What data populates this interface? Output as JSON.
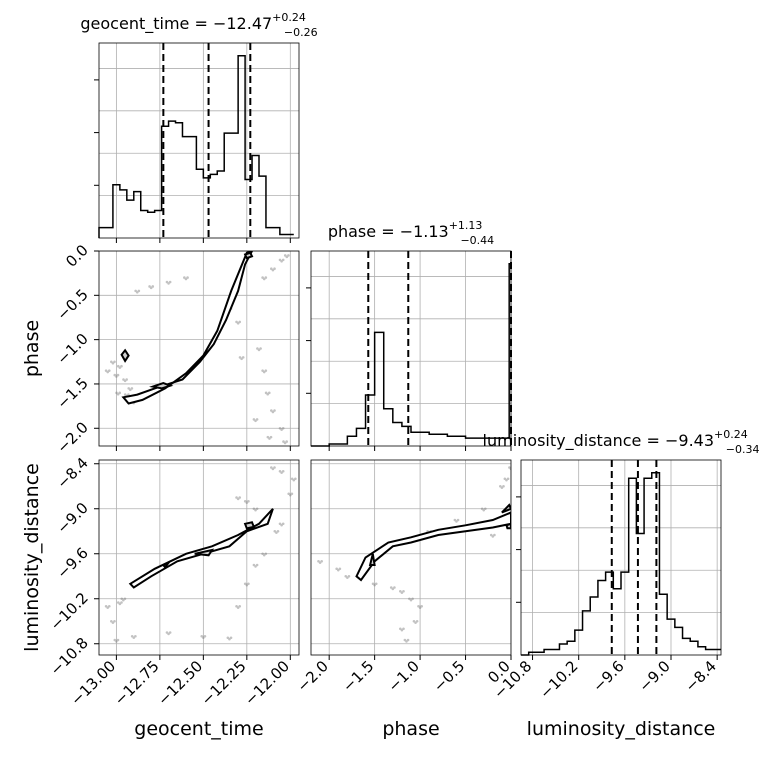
{
  "chart_data": {
    "type": "corner",
    "params": [
      {
        "id": "geocent_time",
        "label": "geocent_time",
        "range": [
          -13.1,
          -11.95
        ],
        "ticks": [
          -13.0,
          -12.75,
          -12.5,
          -12.25,
          -12.0
        ],
        "tick_labels": [
          "−13.00",
          "−12.75",
          "−12.50",
          "−12.25",
          "−12.00"
        ],
        "title": {
          "text": "geocent_time = −12.47",
          "sup": "+0.24",
          "sub": "−0.26"
        },
        "quantiles": [
          -12.73,
          -12.47,
          -12.23
        ],
        "hist": {
          "edges": [
            -13.1,
            -13.06,
            -13.02,
            -12.98,
            -12.94,
            -12.9,
            -12.86,
            -12.82,
            -12.78,
            -12.74,
            -12.7,
            -12.66,
            -12.62,
            -12.58,
            -12.54,
            -12.5,
            -12.46,
            -12.42,
            -12.38,
            -12.34,
            -12.3,
            -12.26,
            -12.22,
            -12.18,
            -12.14,
            -12.1,
            -12.06,
            -12.02,
            -11.98
          ],
          "counts": [
            0.06,
            0.06,
            0.31,
            0.28,
            0.22,
            0.27,
            0.16,
            0.15,
            0.16,
            0.65,
            0.68,
            0.67,
            0.59,
            0.59,
            0.4,
            0.35,
            0.37,
            0.39,
            0.61,
            0.61,
            1.06,
            0.34,
            0.48,
            0.36,
            0.06,
            0.06,
            0.02,
            0.02
          ]
        }
      },
      {
        "id": "phase",
        "label": "phase",
        "range": [
          -2.2,
          0.0
        ],
        "ticks": [
          -2.0,
          -1.5,
          -1.0,
          -0.5,
          0.0
        ],
        "tick_labels": [
          "−2.0",
          "−1.5",
          "−1.0",
          "−0.5",
          "0.0"
        ],
        "title": {
          "text": "phase = −1.13",
          "sup": "+1.13",
          "sub": "−0.44"
        },
        "quantiles": [
          -1.57,
          -1.13,
          0.0
        ],
        "hist": {
          "edges": [
            -2.2,
            -2.1,
            -2.0,
            -1.9,
            -1.8,
            -1.7,
            -1.6,
            -1.5,
            -1.4,
            -1.3,
            -1.2,
            -1.1,
            -1.0,
            -0.9,
            -0.8,
            -0.7,
            -0.6,
            -0.5,
            -0.4,
            -0.3,
            -0.2,
            -0.1,
            -0.02,
            0.0
          ],
          "counts": [
            0.0,
            0.0,
            0.01,
            0.01,
            0.05,
            0.09,
            0.26,
            0.58,
            0.19,
            0.12,
            0.1,
            0.07,
            0.07,
            0.06,
            0.06,
            0.05,
            0.05,
            0.04,
            0.04,
            0.04,
            0.04,
            0.04,
            0.93
          ]
        }
      },
      {
        "id": "luminosity_distance",
        "label": "luminosity_distance",
        "range": [
          -10.95,
          -8.35
        ],
        "ticks": [
          -10.8,
          -10.2,
          -9.6,
          -9.0,
          -8.4
        ],
        "tick_labels": [
          "−10.8",
          "−10.2",
          "−9.6",
          "−9.0",
          "−8.4"
        ],
        "title": {
          "text": "luminosity_distance = −9.43",
          "sup": "+0.24",
          "sub": "−0.34"
        },
        "quantiles": [
          -9.77,
          -9.43,
          -9.19
        ],
        "hist": {
          "edges": [
            -10.95,
            -10.85,
            -10.75,
            -10.65,
            -10.55,
            -10.45,
            -10.35,
            -10.25,
            -10.15,
            -10.05,
            -9.95,
            -9.85,
            -9.75,
            -9.65,
            -9.55,
            -9.45,
            -9.35,
            -9.25,
            -9.15,
            -9.05,
            -8.95,
            -8.85,
            -8.75,
            -8.65,
            -8.55,
            -8.45,
            -8.35
          ],
          "counts": [
            0.0,
            0.01,
            0.01,
            0.02,
            0.02,
            0.04,
            0.05,
            0.09,
            0.16,
            0.21,
            0.27,
            0.3,
            0.24,
            0.3,
            0.64,
            0.44,
            0.64,
            0.66,
            0.22,
            0.13,
            0.1,
            0.06,
            0.05,
            0.03,
            0.02,
            0.02
          ]
        }
      }
    ],
    "pairs": [
      {
        "xparam": "geocent_time",
        "yparam": "phase",
        "outer": [
          [
            -12.96,
            -1.65
          ],
          [
            -12.88,
            -1.62
          ],
          [
            -12.78,
            -1.55
          ],
          [
            -12.62,
            -1.45
          ],
          [
            -12.52,
            -1.25
          ],
          [
            -12.44,
            -1.05
          ],
          [
            -12.37,
            -0.78
          ],
          [
            -12.3,
            -0.45
          ],
          [
            -12.26,
            -0.15
          ],
          [
            -12.22,
            0.0
          ],
          [
            -12.25,
            -0.02
          ],
          [
            -12.34,
            -0.45
          ],
          [
            -12.42,
            -0.9
          ],
          [
            -12.5,
            -1.18
          ],
          [
            -12.6,
            -1.38
          ],
          [
            -12.72,
            -1.55
          ],
          [
            -12.85,
            -1.68
          ],
          [
            -12.93,
            -1.72
          ]
        ],
        "inner": [
          [
            -12.79,
            -1.53
          ],
          [
            -12.73,
            -1.49
          ],
          [
            -12.69,
            -1.52
          ],
          [
            -12.74,
            -1.55
          ]
        ],
        "inner2": [
          [
            -12.26,
            -0.04
          ],
          [
            -12.23,
            -0.02
          ],
          [
            -12.22,
            -0.06
          ],
          [
            -12.25,
            -0.08
          ]
        ],
        "inner3": [
          [
            -12.97,
            -1.17
          ],
          [
            -12.95,
            -1.12
          ],
          [
            -12.93,
            -1.18
          ],
          [
            -12.95,
            -1.24
          ]
        ],
        "scatter": [
          [
            -13.05,
            -1.35
          ],
          [
            -13.02,
            -1.25
          ],
          [
            -13.0,
            -1.4
          ],
          [
            -12.98,
            -1.3
          ],
          [
            -12.95,
            -1.45
          ],
          [
            -12.92,
            -1.55
          ],
          [
            -12.99,
            -1.6
          ],
          [
            -12.94,
            -1.62
          ],
          [
            -12.9,
            -1.7
          ],
          [
            -12.88,
            -0.45
          ],
          [
            -12.8,
            -0.4
          ],
          [
            -12.7,
            -0.35
          ],
          [
            -12.6,
            -0.3
          ],
          [
            -12.35,
            -0.65
          ],
          [
            -12.3,
            -0.8
          ],
          [
            -12.18,
            -1.1
          ],
          [
            -12.15,
            -1.35
          ],
          [
            -12.13,
            -1.6
          ],
          [
            -12.1,
            -1.8
          ],
          [
            -12.05,
            -2.0
          ],
          [
            -12.15,
            -0.3
          ],
          [
            -12.1,
            -0.2
          ],
          [
            -12.05,
            -0.1
          ],
          [
            -12.02,
            -0.05
          ],
          [
            -12.03,
            -2.15
          ],
          [
            -12.28,
            -1.2
          ],
          [
            -12.2,
            -1.9
          ],
          [
            -12.12,
            -2.1
          ]
        ]
      },
      {
        "xparam": "geocent_time",
        "yparam": "luminosity_distance",
        "outer": [
          [
            -12.92,
            -10.0
          ],
          [
            -12.78,
            -9.8
          ],
          [
            -12.6,
            -9.6
          ],
          [
            -12.45,
            -9.5
          ],
          [
            -12.3,
            -9.35
          ],
          [
            -12.18,
            -9.2
          ],
          [
            -12.1,
            -9.0
          ],
          [
            -12.13,
            -9.2
          ],
          [
            -12.25,
            -9.3
          ],
          [
            -12.35,
            -9.5
          ],
          [
            -12.5,
            -9.6
          ],
          [
            -12.65,
            -9.7
          ],
          [
            -12.8,
            -9.9
          ],
          [
            -12.9,
            -10.05
          ]
        ],
        "inner": [
          [
            -12.55,
            -9.6
          ],
          [
            -12.45,
            -9.55
          ],
          [
            -12.47,
            -9.62
          ]
        ],
        "inner2": [
          [
            -12.26,
            -9.2
          ],
          [
            -12.22,
            -9.18
          ],
          [
            -12.21,
            -9.24
          ],
          [
            -12.25,
            -9.26
          ]
        ],
        "inner3": [
          [
            -12.73,
            -9.75
          ],
          [
            -12.7,
            -9.72
          ],
          [
            -12.72,
            -9.78
          ]
        ],
        "scatter": [
          [
            -13.05,
            -10.3
          ],
          [
            -13.02,
            -10.5
          ],
          [
            -12.98,
            -10.25
          ],
          [
            -12.96,
            -10.2
          ],
          [
            -13.0,
            -10.75
          ],
          [
            -12.9,
            -10.7
          ],
          [
            -12.7,
            -10.65
          ],
          [
            -12.5,
            -10.7
          ],
          [
            -12.35,
            -10.72
          ],
          [
            -12.3,
            -10.3
          ],
          [
            -12.25,
            -10.0
          ],
          [
            -12.2,
            -9.75
          ],
          [
            -12.15,
            -9.6
          ],
          [
            -12.08,
            -9.3
          ],
          [
            -12.05,
            -9.2
          ],
          [
            -12.0,
            -8.8
          ],
          [
            -12.1,
            -8.45
          ],
          [
            -12.05,
            -8.5
          ],
          [
            -12.2,
            -9.0
          ],
          [
            -12.25,
            -8.9
          ],
          [
            -12.3,
            -8.85
          ],
          [
            -11.98,
            -8.6
          ]
        ]
      },
      {
        "xparam": "phase",
        "yparam": "luminosity_distance",
        "outer": [
          [
            -1.65,
            -9.95
          ],
          [
            -1.5,
            -9.7
          ],
          [
            -1.3,
            -9.5
          ],
          [
            -1.1,
            -9.45
          ],
          [
            -0.8,
            -9.35
          ],
          [
            -0.5,
            -9.3
          ],
          [
            -0.2,
            -9.25
          ],
          [
            0.0,
            -9.2
          ],
          [
            0.0,
            -9.05
          ],
          [
            -0.2,
            -9.15
          ],
          [
            -0.5,
            -9.22
          ],
          [
            -0.8,
            -9.28
          ],
          [
            -1.1,
            -9.38
          ],
          [
            -1.35,
            -9.45
          ],
          [
            -1.6,
            -9.65
          ],
          [
            -1.7,
            -9.9
          ]
        ],
        "inner": [
          [
            -1.55,
            -9.75
          ],
          [
            -1.52,
            -9.6
          ],
          [
            -1.5,
            -9.75
          ]
        ],
        "inner2": [
          [
            -0.05,
            -9.22
          ],
          [
            0.0,
            -9.2
          ],
          [
            0.0,
            -9.26
          ],
          [
            -0.04,
            -9.26
          ]
        ],
        "inner3": [
          [
            -0.1,
            -9.05
          ],
          [
            -0.02,
            -8.95
          ],
          [
            0.0,
            -9.0
          ]
        ],
        "scatter": [
          [
            -2.1,
            -9.7
          ],
          [
            -1.9,
            -9.8
          ],
          [
            -1.8,
            -9.9
          ],
          [
            -1.5,
            -10.0
          ],
          [
            -1.3,
            -10.05
          ],
          [
            -1.2,
            -10.1
          ],
          [
            -1.1,
            -10.2
          ],
          [
            -1.05,
            -10.5
          ],
          [
            -1.15,
            -10.75
          ],
          [
            -1.2,
            -10.6
          ],
          [
            -1.0,
            -10.3
          ],
          [
            -0.2,
            -9.35
          ],
          [
            -0.3,
            -9.0
          ],
          [
            -0.1,
            -8.7
          ],
          [
            -0.05,
            -8.6
          ],
          [
            0.0,
            -8.45
          ],
          [
            -0.6,
            -9.15
          ],
          [
            -0.9,
            -9.3
          ]
        ]
      }
    ]
  }
}
